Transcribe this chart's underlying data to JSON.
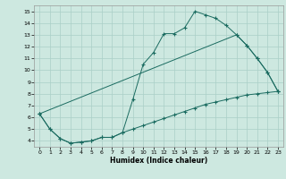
{
  "xlabel": "Humidex (Indice chaleur)",
  "background_color": "#cde8e0",
  "grid_color": "#aacfc7",
  "line_color": "#1a6b60",
  "xlim": [
    -0.5,
    23.5
  ],
  "ylim": [
    3.5,
    15.5
  ],
  "yticks": [
    4,
    5,
    6,
    7,
    8,
    9,
    10,
    11,
    12,
    13,
    14,
    15
  ],
  "xticks": [
    0,
    1,
    2,
    3,
    4,
    5,
    6,
    7,
    8,
    9,
    10,
    11,
    12,
    13,
    14,
    15,
    16,
    17,
    18,
    19,
    20,
    21,
    22,
    23
  ],
  "line1_x": [
    0,
    1,
    2,
    3,
    4,
    5,
    6,
    7,
    8,
    9,
    10,
    11,
    12,
    13,
    14,
    15,
    16,
    17,
    18,
    19,
    20,
    21,
    22,
    23
  ],
  "line1_y": [
    6.3,
    5.0,
    4.2,
    3.8,
    3.9,
    4.0,
    4.3,
    4.3,
    4.7,
    7.5,
    10.5,
    11.5,
    13.1,
    13.1,
    13.6,
    15.0,
    14.7,
    14.4,
    13.8,
    13.0,
    12.1,
    11.0,
    9.8,
    8.2
  ],
  "line2_x": [
    0,
    1,
    2,
    3,
    4,
    5,
    6,
    7,
    8,
    9,
    10,
    11,
    12,
    13,
    14,
    15,
    16,
    17,
    18,
    19,
    20,
    21,
    22,
    23
  ],
  "line2_y": [
    6.3,
    5.0,
    4.2,
    3.8,
    3.9,
    4.0,
    4.3,
    4.3,
    4.7,
    5.0,
    5.3,
    5.6,
    5.9,
    6.2,
    6.5,
    6.8,
    7.1,
    7.3,
    7.5,
    7.7,
    7.9,
    8.0,
    8.1,
    8.2
  ],
  "line3_x": [
    0,
    19,
    20,
    21,
    22,
    23
  ],
  "line3_y": [
    6.3,
    13.0,
    12.1,
    11.0,
    9.8,
    8.2
  ]
}
